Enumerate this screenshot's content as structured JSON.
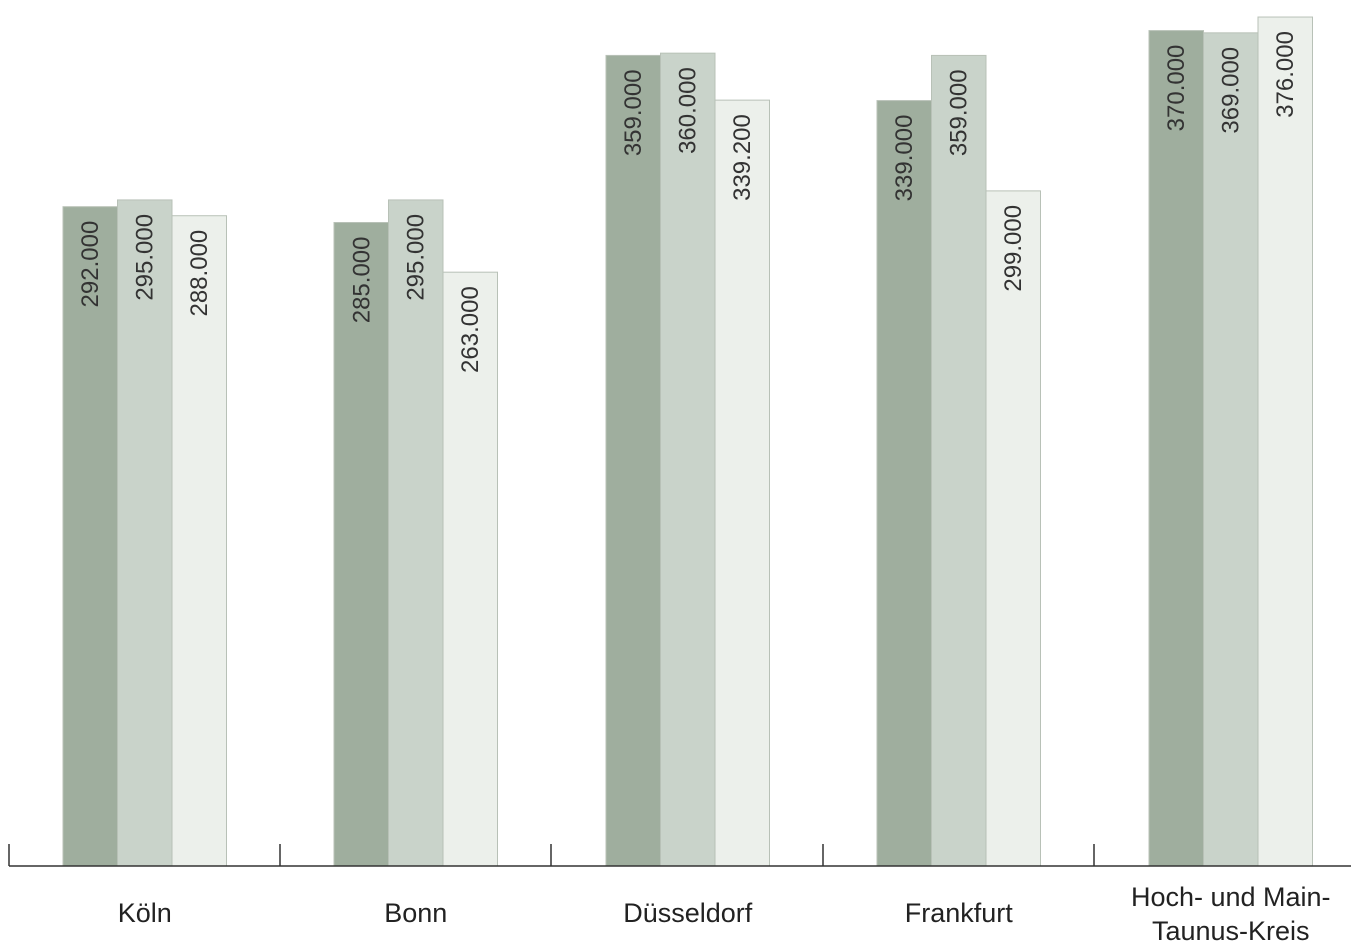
{
  "chart_data": {
    "type": "bar",
    "title": "",
    "xlabel": "",
    "ylabel": "",
    "categories": [
      "Köln",
      "Bonn",
      "Düsseldorf",
      "Frankfurt",
      "Hoch- und Main-\nTaunus-Kreis"
    ],
    "series": [
      {
        "color": "#9fae9e",
        "values": [
          292000,
          285000,
          359000,
          339000,
          370000
        ],
        "labels": [
          "292.000",
          "285.000",
          "359.000",
          "339.000",
          "370.000"
        ]
      },
      {
        "color": "#c9d3ca",
        "values": [
          295000,
          295000,
          360000,
          359000,
          369000
        ],
        "labels": [
          "295.000",
          "295.000",
          "360.000",
          "359.000",
          "369.000"
        ]
      },
      {
        "color": "#ecf0eb",
        "values": [
          288000,
          263000,
          339200,
          299000,
          376000
        ],
        "labels": [
          "288.000",
          "263.000",
          "339.200",
          "299.000",
          "376.000"
        ]
      }
    ],
    "ylim": [
      0,
      380000
    ],
    "grid": false,
    "legend": "none",
    "axis_color": "#333333",
    "bar_border_color": "#b8c1b7"
  }
}
